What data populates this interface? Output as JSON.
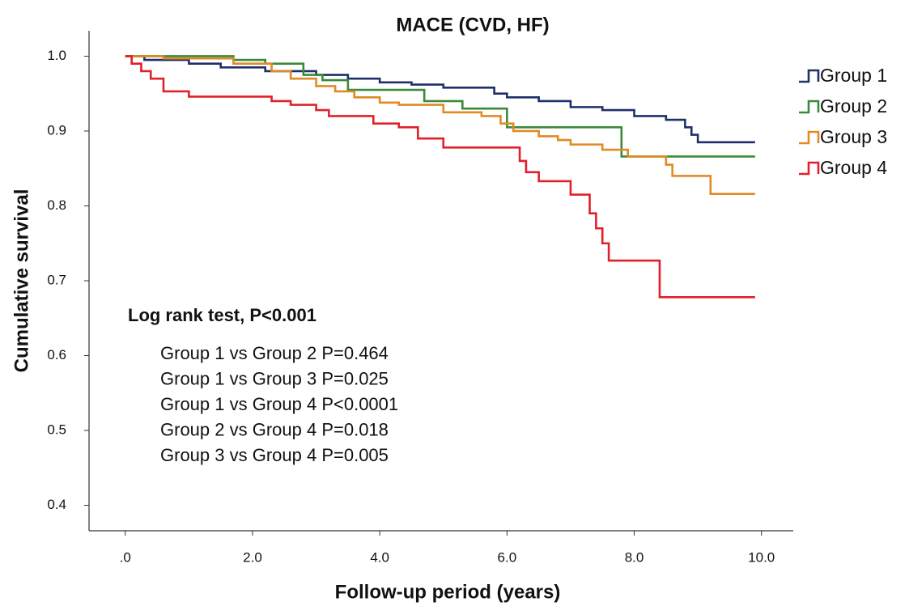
{
  "chart_data": {
    "type": "step",
    "title": "MACE (CVD, HF)",
    "x_label": "Follow-up period (years)",
    "y_label": "Cumulative survival",
    "xlim": [
      -0.57,
      10.5
    ],
    "ylim": [
      0.366,
      1.034
    ],
    "xticks": [
      {
        "value": 0,
        "label": ".0"
      },
      {
        "value": 2,
        "label": "2.0"
      },
      {
        "value": 4,
        "label": "4.0"
      },
      {
        "value": 6,
        "label": "6.0"
      },
      {
        "value": 8,
        "label": "8.0"
      },
      {
        "value": 10,
        "label": "10.0"
      }
    ],
    "yticks": [
      {
        "value": 0.4,
        "label": "0.4"
      },
      0.5,
      0.6,
      0.7,
      0.8,
      0.9,
      {
        "value": 1,
        "label": "1.0"
      }
    ],
    "legend": "right",
    "series": [
      {
        "name": "Group 1",
        "color": "#1f2f6b",
        "x": [
          0,
          0.3,
          1.0,
          1.5,
          2.2,
          3.0,
          3.5,
          4.0,
          4.5,
          5.0,
          5.8,
          6.0,
          6.5,
          7.0,
          7.5,
          8.0,
          8.5,
          8.8,
          8.9,
          9.0,
          9.9
        ],
        "values": [
          1,
          0.995,
          0.99,
          0.985,
          0.98,
          0.975,
          0.97,
          0.965,
          0.962,
          0.958,
          0.95,
          0.945,
          0.94,
          0.932,
          0.928,
          0.92,
          0.915,
          0.905,
          0.895,
          0.885,
          0.885
        ]
      },
      {
        "name": "Group 2",
        "color": "#3a8a3a",
        "x": [
          0,
          1.7,
          2.2,
          2.8,
          3.1,
          3.5,
          4.7,
          5.3,
          6.0,
          7.8,
          9.9
        ],
        "values": [
          1,
          0.995,
          0.99,
          0.975,
          0.968,
          0.955,
          0.94,
          0.93,
          0.905,
          0.866,
          0.866
        ]
      },
      {
        "name": "Group 3",
        "color": "#e08a24",
        "x": [
          0,
          0.6,
          1.7,
          2.3,
          2.6,
          3.0,
          3.3,
          3.6,
          4.0,
          4.3,
          5.0,
          5.6,
          5.9,
          6.1,
          6.5,
          6.8,
          7.0,
          7.5,
          7.9,
          8.5,
          8.6,
          9.2,
          9.9
        ],
        "values": [
          1,
          0.997,
          0.99,
          0.98,
          0.97,
          0.96,
          0.953,
          0.945,
          0.938,
          0.935,
          0.925,
          0.92,
          0.91,
          0.9,
          0.893,
          0.888,
          0.882,
          0.875,
          0.866,
          0.855,
          0.84,
          0.816,
          0.816
        ]
      },
      {
        "name": "Group 4",
        "color": "#e0202a",
        "x": [
          0,
          0.1,
          0.25,
          0.4,
          0.6,
          1.0,
          2.3,
          2.6,
          3.0,
          3.2,
          3.9,
          4.3,
          4.6,
          5.0,
          6.2,
          6.3,
          6.5,
          7.0,
          7.3,
          7.4,
          7.5,
          7.6,
          8.4,
          9.9
        ],
        "values": [
          1,
          0.99,
          0.98,
          0.97,
          0.953,
          0.946,
          0.94,
          0.935,
          0.928,
          0.92,
          0.91,
          0.905,
          0.89,
          0.878,
          0.86,
          0.845,
          0.833,
          0.815,
          0.79,
          0.77,
          0.75,
          0.727,
          0.678,
          0.678
        ]
      }
    ],
    "annotations": [
      "Log rank test, P<0.001",
      "Group 1 vs Group 2 P=0.464",
      "Group 1 vs Group 3 P=0.025",
      "Group 1 vs Group 4 P<0.0001",
      "Group 2 vs Group 4 P=0.018",
      "Group 3 vs Group 4 P=0.005"
    ]
  }
}
